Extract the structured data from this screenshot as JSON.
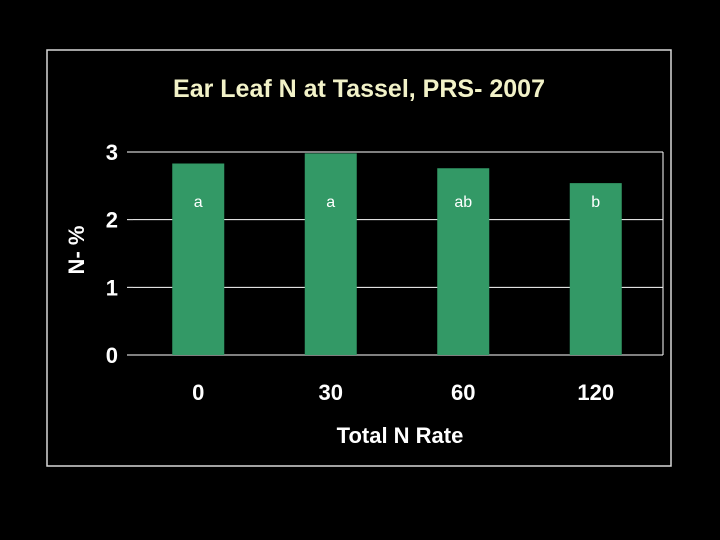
{
  "colors": {
    "background": "#000000",
    "title": "#f2f2c8",
    "text": "#ffffff",
    "bar": "#339966",
    "grid": "#ffffff"
  },
  "chart_data": {
    "type": "bar",
    "title": "Ear Leaf N at Tassel, PRS- 2007",
    "xlabel": "Total N Rate",
    "ylabel": "N- %",
    "categories": [
      "0",
      "30",
      "60",
      "120"
    ],
    "values": [
      2.83,
      2.98,
      2.76,
      2.54
    ],
    "bar_labels": [
      "a",
      "a",
      "ab",
      "b"
    ],
    "yticks": [
      "0",
      "1",
      "2",
      "3"
    ],
    "ylim": [
      0,
      3
    ],
    "grid": true
  }
}
